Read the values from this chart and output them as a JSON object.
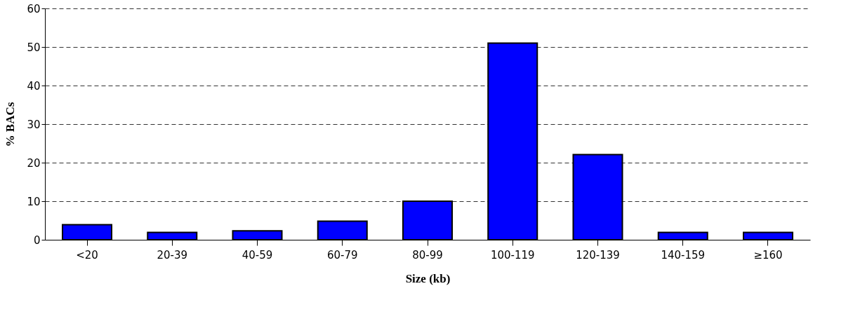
{
  "chart_data": {
    "type": "bar",
    "xlabel": "Size (kb)",
    "ylabel": "% BACs",
    "categories": [
      "<20",
      "20-39",
      "40-59",
      "60-79",
      "80-99",
      "100-119",
      "120-139",
      "140-159",
      "≥160"
    ],
    "values": [
      3.9,
      1.9,
      2.3,
      4.8,
      10,
      51,
      22.1,
      1.9,
      1.9
    ],
    "color": "#0000ff",
    "ylim": [
      0,
      60
    ],
    "yticks": [
      0,
      10,
      20,
      30,
      40,
      50,
      60
    ],
    "grid": "y"
  }
}
